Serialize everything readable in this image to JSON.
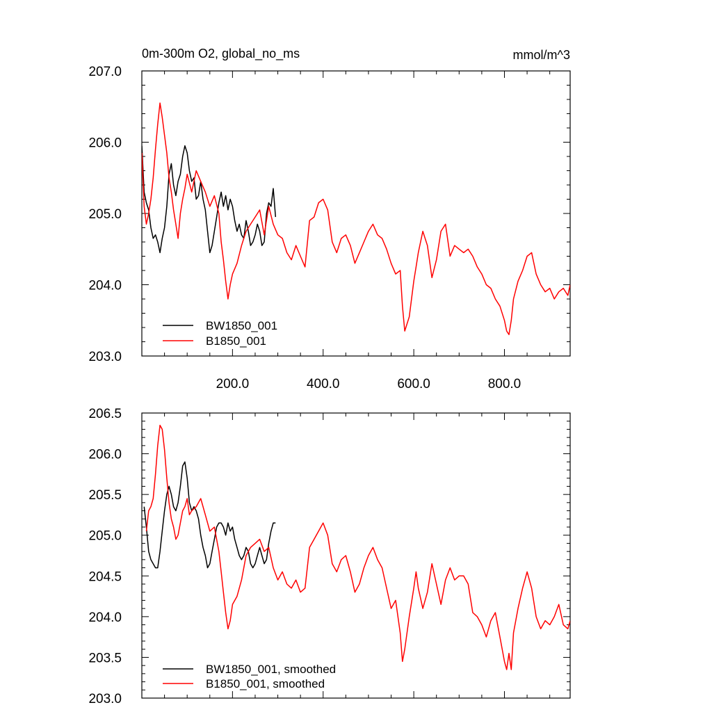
{
  "chart_data": [
    {
      "type": "line",
      "title_left": "0m-300m O2, global_no_ms",
      "title_right": "mmol/m^3",
      "xlim": [
        0,
        945
      ],
      "ylim": [
        203.0,
        207.0
      ],
      "x_ticks": [
        200,
        400,
        600,
        800
      ],
      "x_tick_labels": [
        "200.0",
        "400.0",
        "600.0",
        "800.0"
      ],
      "y_ticks": [
        203,
        204,
        205,
        206,
        207
      ],
      "y_tick_labels": [
        "203.0",
        "204.0",
        "205.0",
        "206.0",
        "207.0"
      ],
      "grid": false,
      "legend_position": "bottom-left",
      "series": [
        {
          "name": "BW1850_001",
          "color": "#000000",
          "x": [
            0,
            5,
            10,
            15,
            20,
            25,
            30,
            35,
            40,
            45,
            50,
            55,
            60,
            65,
            70,
            75,
            80,
            85,
            90,
            95,
            100,
            105,
            110,
            115,
            120,
            125,
            130,
            135,
            140,
            145,
            150,
            155,
            160,
            165,
            170,
            175,
            180,
            185,
            190,
            195,
            200,
            205,
            210,
            215,
            220,
            225,
            230,
            235,
            240,
            245,
            250,
            255,
            260,
            265,
            270,
            275,
            280,
            285,
            290,
            295
          ],
          "y": [
            205.95,
            205.3,
            205.15,
            205.05,
            204.8,
            204.65,
            204.7,
            204.6,
            204.45,
            204.65,
            204.8,
            205.1,
            205.55,
            205.7,
            205.4,
            205.25,
            205.45,
            205.55,
            205.8,
            205.95,
            205.85,
            205.6,
            205.45,
            205.5,
            205.2,
            205.25,
            205.45,
            205.2,
            205.05,
            204.75,
            204.45,
            204.55,
            204.75,
            204.95,
            205.15,
            205.3,
            205.1,
            205.25,
            205.05,
            205.2,
            205.1,
            204.9,
            204.75,
            204.85,
            204.7,
            204.65,
            204.9,
            204.75,
            204.55,
            204.6,
            204.7,
            204.85,
            204.75,
            204.55,
            204.6,
            205.0,
            205.15,
            205.1,
            205.35,
            204.95
          ]
        },
        {
          "name": "B1850_001",
          "color": "#ff0000",
          "x": [
            0,
            5,
            10,
            15,
            20,
            25,
            30,
            35,
            40,
            45,
            50,
            55,
            60,
            65,
            70,
            75,
            80,
            85,
            90,
            95,
            100,
            110,
            120,
            130,
            140,
            150,
            160,
            170,
            175,
            180,
            185,
            190,
            195,
            200,
            210,
            220,
            230,
            240,
            250,
            260,
            270,
            280,
            290,
            300,
            310,
            320,
            330,
            340,
            350,
            360,
            370,
            380,
            390,
            400,
            410,
            420,
            430,
            440,
            450,
            460,
            470,
            480,
            490,
            500,
            510,
            520,
            530,
            540,
            550,
            560,
            570,
            575,
            580,
            590,
            600,
            605,
            610,
            620,
            630,
            640,
            650,
            660,
            670,
            680,
            690,
            700,
            710,
            720,
            730,
            740,
            750,
            760,
            770,
            780,
            790,
            800,
            805,
            810,
            815,
            820,
            830,
            840,
            850,
            860,
            870,
            880,
            890,
            900,
            910,
            920,
            930,
            940,
            945
          ],
          "y": [
            205.85,
            205.1,
            204.85,
            205.0,
            205.2,
            205.5,
            205.9,
            206.25,
            206.55,
            206.35,
            206.1,
            205.85,
            205.5,
            205.3,
            205.05,
            204.85,
            204.65,
            205.0,
            205.2,
            205.35,
            205.55,
            205.3,
            205.6,
            205.45,
            205.3,
            205.1,
            205.25,
            205.0,
            204.6,
            204.35,
            204.05,
            203.8,
            204.0,
            204.15,
            204.3,
            204.55,
            204.75,
            204.85,
            204.95,
            205.05,
            204.7,
            205.1,
            204.85,
            204.7,
            204.65,
            204.45,
            204.35,
            204.55,
            204.4,
            204.25,
            204.9,
            204.95,
            205.15,
            205.2,
            205.05,
            204.6,
            204.45,
            204.65,
            204.7,
            204.55,
            204.3,
            204.45,
            204.6,
            204.75,
            204.85,
            204.7,
            204.65,
            204.5,
            204.3,
            204.15,
            204.2,
            203.7,
            203.35,
            203.55,
            204.05,
            204.25,
            204.45,
            204.75,
            204.55,
            204.1,
            204.35,
            204.75,
            204.85,
            204.4,
            204.55,
            204.5,
            204.45,
            204.5,
            204.4,
            204.25,
            204.15,
            204.0,
            203.95,
            203.8,
            203.7,
            203.5,
            203.35,
            203.3,
            203.5,
            203.8,
            204.05,
            204.2,
            204.4,
            204.45,
            204.15,
            204.0,
            203.9,
            203.95,
            203.8,
            203.9,
            203.95,
            203.85,
            204.0
          ]
        }
      ]
    },
    {
      "type": "line",
      "xlim": [
        0,
        945
      ],
      "ylim": [
        203.0,
        206.5
      ],
      "x_ticks": [
        200,
        400,
        600,
        800
      ],
      "y_ticks": [
        203.0,
        203.5,
        204.0,
        204.5,
        205.0,
        205.5,
        206.0,
        206.5
      ],
      "y_tick_labels": [
        "203.0",
        "203.5",
        "204.0",
        "204.5",
        "205.0",
        "205.5",
        "206.0",
        "206.5"
      ],
      "grid": false,
      "legend_position": "bottom-left",
      "series": [
        {
          "name": "BW1850_001, smoothed",
          "color": "#000000",
          "x": [
            5,
            10,
            15,
            20,
            25,
            30,
            35,
            40,
            45,
            50,
            55,
            60,
            65,
            70,
            75,
            80,
            85,
            90,
            95,
            100,
            105,
            110,
            115,
            120,
            125,
            130,
            135,
            140,
            145,
            150,
            155,
            160,
            165,
            170,
            175,
            180,
            185,
            190,
            195,
            200,
            205,
            210,
            215,
            220,
            225,
            230,
            235,
            240,
            245,
            250,
            255,
            260,
            265,
            270,
            275,
            280,
            285,
            290,
            295
          ],
          "y": [
            205.35,
            205.1,
            204.8,
            204.7,
            204.65,
            204.6,
            204.6,
            204.8,
            205.05,
            205.3,
            205.5,
            205.6,
            205.5,
            205.35,
            205.3,
            205.4,
            205.6,
            205.85,
            205.9,
            205.7,
            205.4,
            205.3,
            205.35,
            205.3,
            205.2,
            205.0,
            204.85,
            204.75,
            204.6,
            204.65,
            204.8,
            204.95,
            205.1,
            205.15,
            205.15,
            205.1,
            205.0,
            205.15,
            205.05,
            205.1,
            204.95,
            204.85,
            204.75,
            204.7,
            204.75,
            204.85,
            204.8,
            204.65,
            204.6,
            204.65,
            204.75,
            204.85,
            204.75,
            204.65,
            204.7,
            204.9,
            205.05,
            205.15,
            205.15
          ]
        },
        {
          "name": "B1850_001, smoothed",
          "color": "#ff0000",
          "x": [
            10,
            15,
            20,
            25,
            30,
            35,
            40,
            45,
            50,
            55,
            60,
            65,
            70,
            75,
            80,
            85,
            90,
            95,
            100,
            105,
            110,
            120,
            130,
            140,
            150,
            160,
            170,
            175,
            180,
            185,
            190,
            195,
            200,
            210,
            220,
            230,
            240,
            250,
            260,
            270,
            280,
            290,
            300,
            310,
            320,
            330,
            340,
            350,
            360,
            370,
            380,
            390,
            400,
            410,
            420,
            430,
            440,
            450,
            460,
            470,
            480,
            490,
            500,
            510,
            520,
            530,
            540,
            550,
            560,
            570,
            575,
            580,
            590,
            600,
            605,
            610,
            620,
            630,
            640,
            650,
            660,
            670,
            680,
            690,
            700,
            710,
            720,
            730,
            740,
            750,
            760,
            770,
            780,
            790,
            800,
            805,
            810,
            815,
            820,
            830,
            840,
            850,
            860,
            870,
            880,
            890,
            900,
            910,
            920,
            930,
            940,
            945
          ],
          "y": [
            205.05,
            205.3,
            205.35,
            205.45,
            205.75,
            206.1,
            206.35,
            206.3,
            206.05,
            205.7,
            205.4,
            205.2,
            205.1,
            204.95,
            205.0,
            205.15,
            205.3,
            205.35,
            205.45,
            205.25,
            205.3,
            205.35,
            205.45,
            205.25,
            205.05,
            205.1,
            204.8,
            204.55,
            204.3,
            204.05,
            203.85,
            203.95,
            204.15,
            204.25,
            204.45,
            204.75,
            204.85,
            204.9,
            204.95,
            204.8,
            204.85,
            204.6,
            204.45,
            204.55,
            204.4,
            204.35,
            204.45,
            204.3,
            204.35,
            204.85,
            204.95,
            205.05,
            205.15,
            205.0,
            204.65,
            204.55,
            204.7,
            204.75,
            204.55,
            204.3,
            204.4,
            204.6,
            204.75,
            204.85,
            204.7,
            204.6,
            204.35,
            204.1,
            204.2,
            203.8,
            203.45,
            203.6,
            204.0,
            204.35,
            204.55,
            204.35,
            204.1,
            204.3,
            204.65,
            204.4,
            204.15,
            204.45,
            204.6,
            204.45,
            204.5,
            204.5,
            204.4,
            204.05,
            204.0,
            203.9,
            203.75,
            203.95,
            204.05,
            203.75,
            203.45,
            203.35,
            203.55,
            203.35,
            203.8,
            204.1,
            204.35,
            204.55,
            204.35,
            204.0,
            203.85,
            203.95,
            203.9,
            204.0,
            204.15,
            203.9,
            203.85,
            203.95
          ]
        }
      ]
    }
  ]
}
